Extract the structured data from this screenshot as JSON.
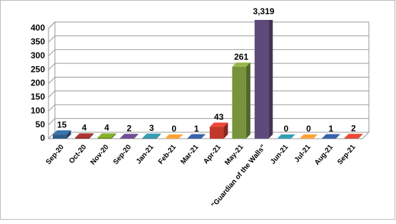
{
  "chart_data": {
    "type": "bar3d",
    "categories": [
      "Sep-20",
      "Oct-20",
      "Nov-20",
      "Sep-20",
      "Jan-21",
      "Feb-21",
      "Mar-21",
      "Apr-21",
      "May-21",
      "\"Guardian of the Walls\"",
      "Jun-21",
      "Jul-21",
      "Aug-21",
      "Sep-21"
    ],
    "values": [
      15,
      4,
      4,
      2,
      3,
      0,
      1,
      43,
      261,
      3319,
      0,
      0,
      1,
      2
    ],
    "value_labels": [
      "15",
      "4",
      "4",
      "2",
      "3",
      "0",
      "1",
      "43",
      "261",
      "3,319",
      "0",
      "0",
      "1",
      "2"
    ],
    "colors": [
      "#2e5c8a",
      "#8b2c2a",
      "#6b8e23",
      "#5a3e7a",
      "#2a7f8f",
      "#d9822b",
      "#2e4f8a",
      "#c0392b",
      "#77933c",
      "#604a7b",
      "#2a7f8f",
      "#d9822b",
      "#2e4f8a",
      "#c0392b"
    ],
    "ylim": [
      0,
      400
    ],
    "yticks": [
      0,
      50,
      100,
      150,
      200,
      250,
      300,
      350,
      400
    ],
    "grid": true
  }
}
